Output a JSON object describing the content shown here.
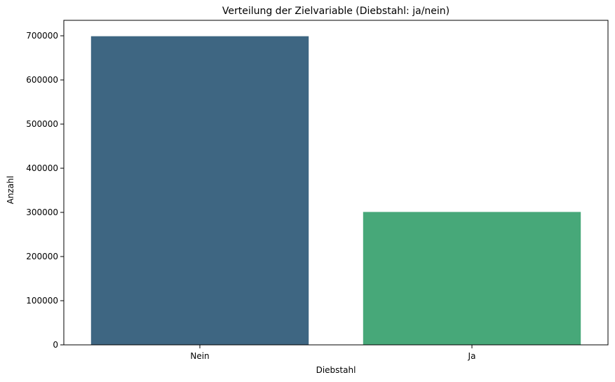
{
  "chart_data": {
    "type": "bar",
    "title": "Verteilung der Zielvariable (Diebstahl: ja/nein)",
    "xlabel": "Diebstahl",
    "ylabel": "Anzahl",
    "categories": [
      "Nein",
      "Ja"
    ],
    "values": [
      699000,
      301000
    ],
    "colors": [
      "#3e6682",
      "#47a879"
    ],
    "ylim": [
      0,
      735000
    ],
    "yticks": [
      0,
      100000,
      200000,
      300000,
      400000,
      500000,
      600000,
      700000
    ],
    "ytick_labels": [
      "0",
      "100000",
      "200000",
      "300000",
      "400000",
      "500000",
      "600000",
      "700000"
    ],
    "grid": false,
    "legend": "none"
  }
}
